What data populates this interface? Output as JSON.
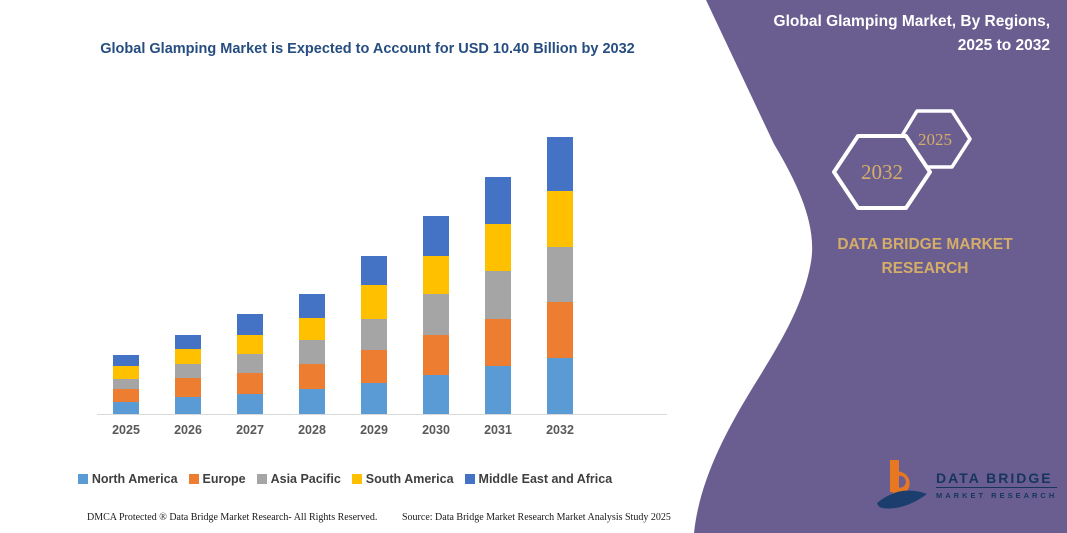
{
  "colors": {
    "purple_panel": "#6a5e90",
    "gold_accent": "#d4ad68",
    "title_navy": "#264d7f",
    "axis_label_gray": "#595959",
    "logo_navy": "#16355d",
    "logo_orange": "#e87722"
  },
  "chart_data": {
    "type": "bar",
    "stacked": true,
    "title": "Global Glamping Market is Expected to Account for USD 10.40 Billion by 2032",
    "unit": "USD Billion",
    "categories": [
      "2025",
      "2026",
      "2027",
      "2028",
      "2029",
      "2030",
      "2031",
      "2032"
    ],
    "series": [
      {
        "name": "North America",
        "color": "#5B9BD5",
        "values": [
          0.46,
          0.65,
          0.75,
          0.93,
          1.17,
          1.45,
          1.81,
          2.09
        ]
      },
      {
        "name": "Europe",
        "color": "#ED7D31",
        "values": [
          0.46,
          0.69,
          0.78,
          0.94,
          1.25,
          1.51,
          1.75,
          2.12
        ]
      },
      {
        "name": "Asia Pacific",
        "color": "#A5A5A5",
        "values": [
          0.41,
          0.53,
          0.71,
          0.91,
          1.15,
          1.56,
          1.81,
          2.06
        ]
      },
      {
        "name": "South America",
        "color": "#FFC000",
        "values": [
          0.46,
          0.56,
          0.72,
          0.83,
          1.29,
          1.43,
          1.75,
          2.1
        ]
      },
      {
        "name": "Middle East and Africa",
        "color": "#4472C4",
        "values": [
          0.44,
          0.54,
          0.78,
          0.9,
          1.09,
          1.49,
          1.8,
          2.03
        ]
      }
    ],
    "totals": [
      2.23,
      2.97,
      3.74,
      4.51,
      5.95,
      7.44,
      8.92,
      10.4
    ],
    "ylim": [
      0,
      10.4
    ],
    "gridlines": false,
    "y_axis_labels_shown": false,
    "legend_position": "bottom"
  },
  "right_panel": {
    "title": "Global Glamping Market, By Regions, 2025 to 2032",
    "hexagons": [
      {
        "label": "2032"
      },
      {
        "label": "2025"
      }
    ],
    "brand_text": "DATA BRIDGE MARKET RESEARCH",
    "logo": {
      "line1": "DATA BRIDGE",
      "line2": "MARKET RESEARCH"
    }
  },
  "footer": {
    "left": "DMCA Protected ® Data Bridge Market Research-  All Rights Reserved.",
    "right": "Source: Data Bridge Market Research  Market Analysis Study 2025"
  }
}
